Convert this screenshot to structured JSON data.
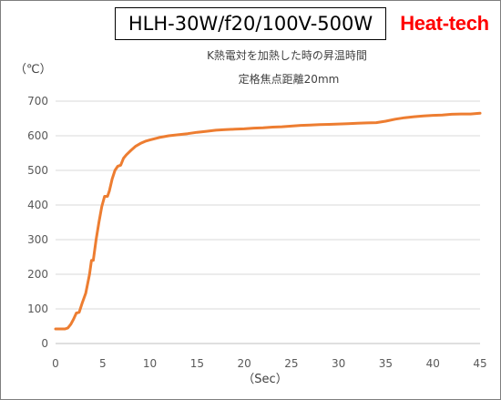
{
  "header": {
    "title": "HLH-30W/f20/100V-500W",
    "brand": "Heat-tech",
    "subtitle_line1": "K熱電対を加熱した時の昇温時間",
    "subtitle_line2": "定格焦点距離20mm"
  },
  "colors": {
    "line": "#ED7D31",
    "gridline": "#d9d9d9",
    "brand": "#ff0000"
  },
  "chart_data": {
    "type": "line",
    "title": "HLH-30W/f20/100V-500W",
    "subtitle": "K熱電対を加熱した時の昇温時間 定格焦点距離20mm",
    "xlabel": "（Sec）",
    "ylabel": "（℃）",
    "xlim": [
      0,
      45
    ],
    "ylim": [
      0,
      700
    ],
    "x_ticks": [
      "0",
      "5",
      "10",
      "15",
      "20",
      "25",
      "30",
      "35",
      "40",
      "45"
    ],
    "y_ticks": [
      "0",
      "100",
      "200",
      "300",
      "400",
      "500",
      "600",
      "700"
    ],
    "grid": "horizontal",
    "legend": "none",
    "x": [
      0,
      0.5,
      1,
      1.3,
      1.6,
      1.9,
      2.2,
      2.5,
      2.8,
      3.2,
      3.6,
      3.8,
      4,
      4.3,
      4.6,
      4.9,
      5.2,
      5.5,
      5.7,
      6,
      6.3,
      6.6,
      6.9,
      7.2,
      7.5,
      8,
      8.5,
      9,
      9.5,
      10,
      11,
      12,
      13,
      14,
      15,
      16,
      17,
      18,
      19,
      20,
      21,
      22,
      23,
      24,
      25,
      26,
      27,
      28,
      29,
      30,
      31,
      32,
      33,
      34,
      35,
      36,
      37,
      38,
      39,
      40,
      41,
      42,
      43,
      44,
      45
    ],
    "series": [
      {
        "values": [
          42,
          42,
          42,
          45,
          55,
          70,
          88,
          90,
          115,
          145,
          200,
          240,
          240,
          300,
          350,
          395,
          425,
          425,
          440,
          475,
          500,
          512,
          515,
          535,
          545,
          558,
          570,
          578,
          584,
          588,
          595,
          600,
          603,
          606,
          610,
          613,
          616,
          618,
          619,
          620,
          622,
          623,
          625,
          626,
          628,
          630,
          631,
          632,
          633,
          634,
          635,
          636,
          637,
          638,
          642,
          648,
          652,
          655,
          657,
          659,
          660,
          662,
          663,
          663,
          665
        ]
      }
    ]
  }
}
